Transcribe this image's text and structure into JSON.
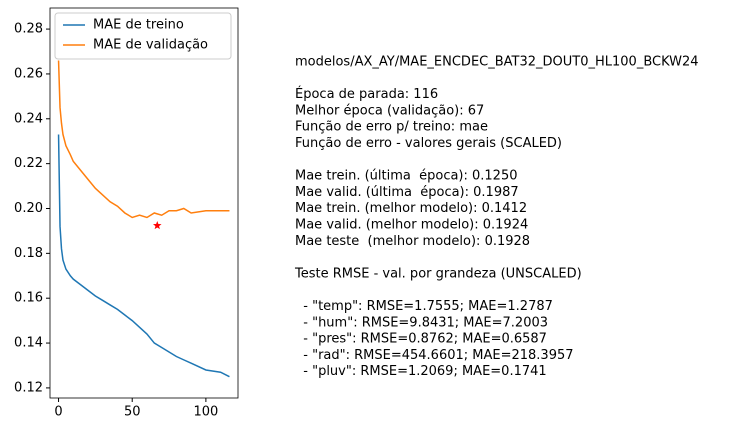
{
  "chart_data": {
    "type": "line",
    "x": [
      0,
      1,
      2,
      3,
      5,
      8,
      10,
      15,
      20,
      25,
      30,
      35,
      40,
      45,
      50,
      55,
      60,
      65,
      70,
      75,
      80,
      85,
      90,
      100,
      110,
      116
    ],
    "series": [
      {
        "name": "MAE de treino",
        "color": "#1f77b4",
        "values": [
          0.233,
          0.192,
          0.182,
          0.177,
          0.173,
          0.17,
          0.1685,
          0.166,
          0.1635,
          0.161,
          0.159,
          0.157,
          0.155,
          0.1525,
          0.15,
          0.147,
          0.144,
          0.14,
          0.138,
          0.136,
          0.134,
          0.1325,
          0.131,
          0.128,
          0.127,
          0.125
        ]
      },
      {
        "name": "MAE de validação",
        "color": "#ff7f0e",
        "values": [
          0.266,
          0.245,
          0.238,
          0.233,
          0.228,
          0.224,
          0.221,
          0.217,
          0.213,
          0.209,
          0.206,
          0.203,
          0.201,
          0.198,
          0.196,
          0.197,
          0.196,
          0.198,
          0.197,
          0.199,
          0.199,
          0.2,
          0.198,
          0.199,
          0.199,
          0.199
        ]
      }
    ],
    "best_point": {
      "x": 67,
      "y": 0.1924,
      "color": "#ff0000"
    },
    "xlim": [
      -5.8,
      121.8
    ],
    "xticks": [
      0,
      50,
      100
    ],
    "ylim": [
      0.1155,
      0.2894
    ],
    "yticks": [
      {
        "value": 0.12,
        "label": "0.12"
      },
      {
        "value": 0.14,
        "label": "0.14"
      },
      {
        "value": 0.16,
        "label": "0.16"
      },
      {
        "value": 0.18,
        "label": "0.18"
      },
      {
        "value": 0.2,
        "label": "0.20"
      },
      {
        "value": 0.22,
        "label": "0.22"
      },
      {
        "value": 0.24,
        "label": "0.24"
      },
      {
        "value": 0.26,
        "label": "0.26"
      },
      {
        "value": 0.28,
        "label": "0.28"
      }
    ],
    "legend": "upper left",
    "text_blocks": [
      [
        "modelos/AX_AY/MAE_ENCDEC_BAT32_DOUT0_HL100_BCKW24"
      ],
      [
        "Época de parada: 116",
        "Melhor época (validação): 67",
        "Função de erro p/ treino: mae",
        "Função de erro - valores gerais (SCALED)"
      ],
      [
        "Mae trein. (última  época): 0.1250",
        "Mae valid. (última  época): 0.1987",
        "Mae trein. (melhor modelo): 0.1412",
        "Mae valid. (melhor modelo): 0.1924",
        "Mae teste  (melhor modelo): 0.1928"
      ],
      [
        "Teste RMSE - val. por grandeza (UNSCALED)"
      ],
      [
        "  - \"temp\": RMSE=1.7555; MAE=1.2787",
        "  - \"hum\": RMSE=9.8431; MAE=7.2003",
        "  - \"pres\": RMSE=0.8762; MAE=0.6587",
        "  - \"rad\": RMSE=454.6601; MAE=218.3957",
        "  - \"pluv\": RMSE=1.2069; MAE=0.1741"
      ]
    ]
  }
}
